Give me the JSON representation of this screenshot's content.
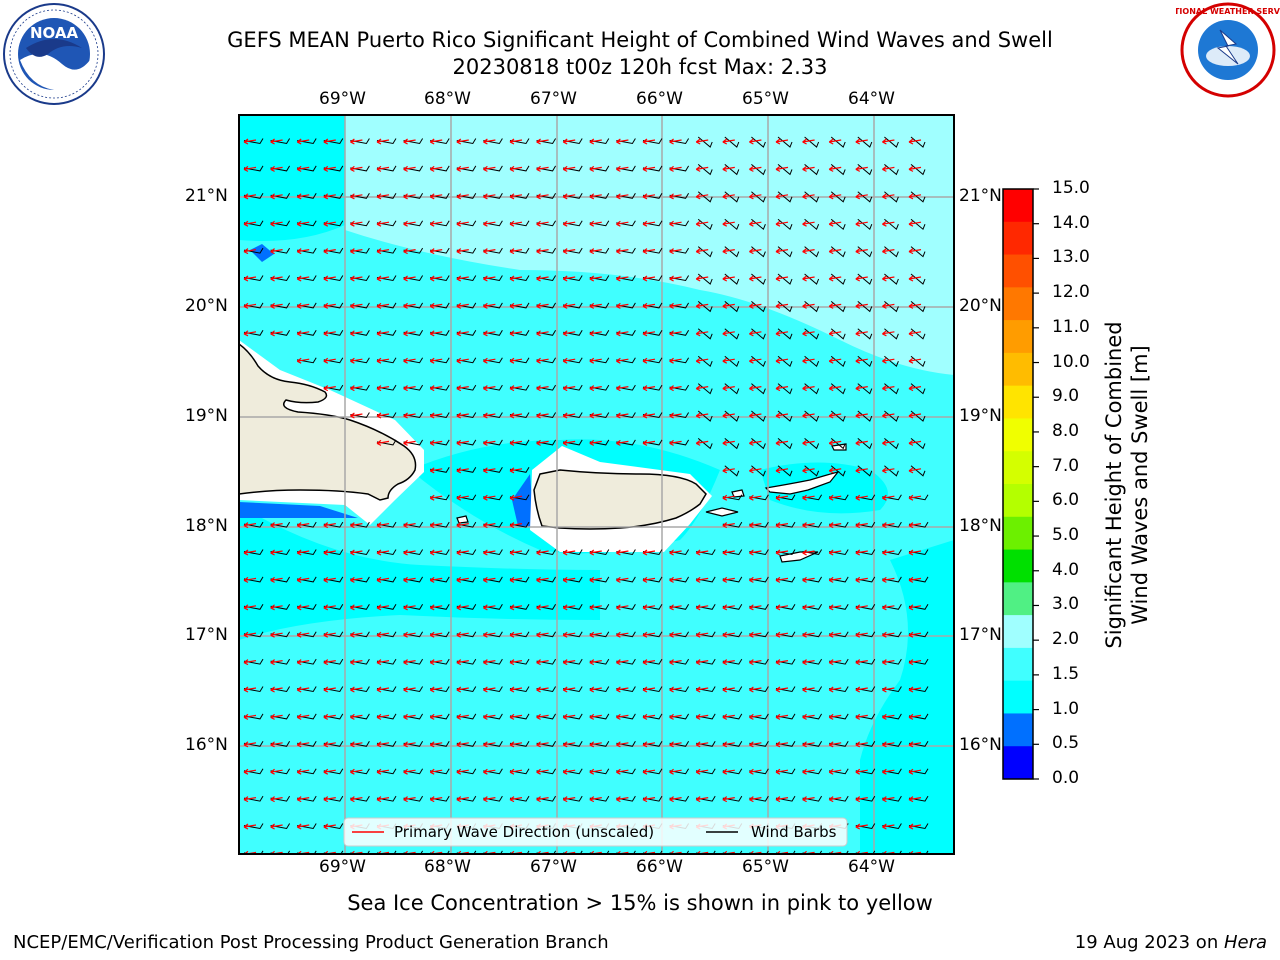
{
  "header": {
    "title_line1": "GEFS MEAN Puerto Rico Significant Height of Combined Wind Waves and Swell",
    "title_line2": "20230818 t00z 120h fcst   Max: 2.33"
  },
  "logos": {
    "left": {
      "text": "NOAA",
      "ring_text": "NATIONAL OCEANIC AND ATMOSPHERIC ADMINISTRATION · U.S. DEPARTMENT OF COMMERCE"
    },
    "right": {
      "text": "NATIONAL WEATHER SERVICE"
    }
  },
  "map": {
    "lon_labels": [
      "69°W",
      "68°W",
      "67°W",
      "66°W",
      "65°W",
      "64°W"
    ],
    "lat_labels": [
      "21°N",
      "20°N",
      "19°N",
      "18°N",
      "17°N",
      "16°N"
    ],
    "land_color": "#efecdc",
    "ocean_colors": {
      "1.0-1.5": "#00ffff",
      "1.5-2.0": "#40ffff",
      "2.0-3.0": "#a0ffff",
      "0.5-1.0": "#0070ff"
    },
    "legend": {
      "primary_wave": "Primary Wave Direction (unscaled)",
      "wind_barbs": "Wind Barbs",
      "primary_wave_color": "#ff0000",
      "wind_barbs_color": "#000000"
    }
  },
  "colorbar": {
    "label_line1": "Significant Height of Combined",
    "label_line2": "Wind Waves and Swell [m]",
    "ticks": [
      "15.0",
      "14.0",
      "13.0",
      "12.0",
      "11.0",
      "10.0",
      "9.0",
      "8.0",
      "7.0",
      "6.0",
      "5.0",
      "4.0",
      "3.0",
      "2.0",
      "1.5",
      "1.0",
      "0.5",
      "0.0"
    ],
    "colors_top_to_bottom": [
      "#ff0000",
      "#ff2800",
      "#ff5000",
      "#ff7800",
      "#ff9c00",
      "#ffbc00",
      "#ffe400",
      "#f0ff00",
      "#d4ff00",
      "#b4ff00",
      "#6cf000",
      "#00e000",
      "#50f084",
      "#a0ffff",
      "#40ffff",
      "#00ffff",
      "#0070ff",
      "#0000ff"
    ]
  },
  "footer": {
    "note": "Sea Ice Concentration > 15% is shown in pink to yellow",
    "left": "NCEP/EMC/Verification Post Processing Product Generation Branch",
    "right_prefix": "19 Aug 2023 on ",
    "right_machine": "Hera"
  }
}
